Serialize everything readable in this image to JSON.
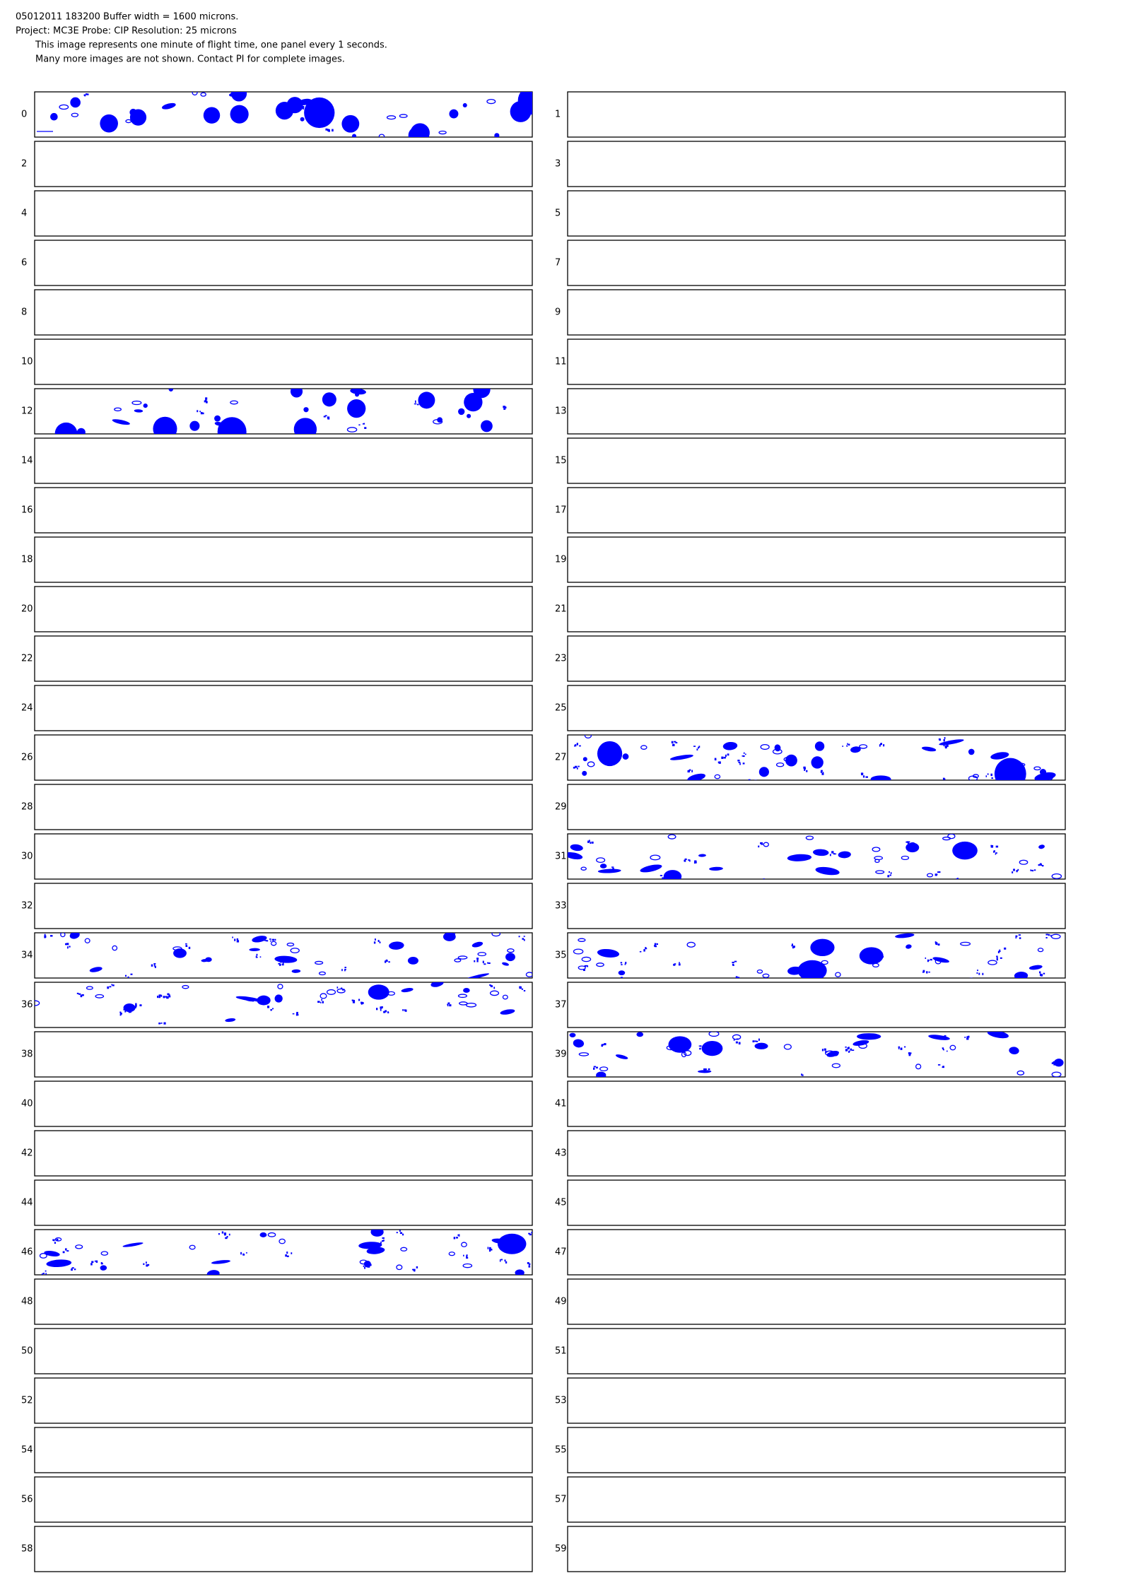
{
  "header": {
    "lines": [
      "05012011 183200  Buffer width = 1600 microns.",
      "Project: MC3E  Probe: CIP    Resolution: 25 microns",
      "This image represents one minute of flight time, one panel every 1 seconds.",
      "Many more images are not shown.  Contact PI for complete images."
    ]
  },
  "panels": [
    0,
    1,
    2,
    3,
    4,
    5,
    6,
    7,
    8,
    9,
    10,
    11,
    12,
    13,
    14,
    15,
    16,
    17,
    18,
    19,
    20,
    21,
    22,
    23,
    24,
    25,
    26,
    27,
    28,
    29,
    30,
    31,
    32,
    33,
    34,
    35,
    36,
    37,
    38,
    39,
    40,
    41,
    42,
    43,
    44,
    45,
    46,
    47,
    48,
    49,
    50,
    51,
    52,
    53,
    54,
    55,
    56,
    57,
    58,
    59
  ]
}
